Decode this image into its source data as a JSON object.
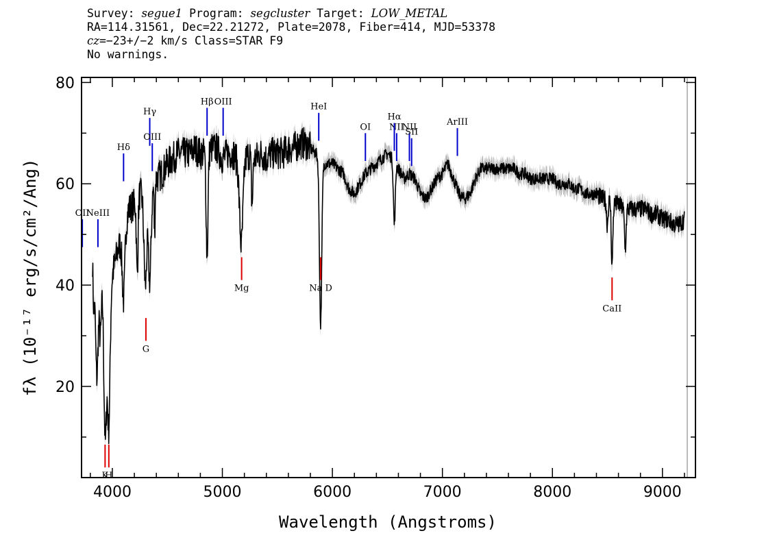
{
  "header": {
    "line1": {
      "survey_label": "Survey: ",
      "survey": "segue1",
      "program_label": " Program: ",
      "program": "segcluster",
      "target_label": " Target: ",
      "target": "LOW_METAL"
    },
    "line2": "RA=114.31561, Dec=22.21272, Plate=2078, Fiber=414, MJD=53378",
    "line3": {
      "cz_label": "cz",
      "cz_value": "=−23+/−2",
      "rest": " km/s Class=STAR F9"
    },
    "line4": "No warnings."
  },
  "chart_data": {
    "type": "line",
    "xlabel": "Wavelength (Angstroms)",
    "ylabel": "fλ (10⁻¹⁷ erg/s/cm²/Ang)",
    "xlim": [
      3720,
      9300
    ],
    "ylim": [
      2,
      81
    ],
    "x_ticks": [
      4000,
      5000,
      6000,
      7000,
      8000,
      9000
    ],
    "y_ticks": [
      20,
      40,
      60,
      80
    ],
    "series_color": "#000000",
    "error_color": "#bbbbbb",
    "emission_line_color": "#0000cc",
    "absorption_line_color": "#dd0000",
    "continuum": [
      [
        3820,
        48
      ],
      [
        3850,
        38
      ],
      [
        3880,
        42
      ],
      [
        3910,
        40
      ],
      [
        3940,
        30
      ],
      [
        3970,
        37
      ],
      [
        4000,
        42
      ],
      [
        4050,
        47
      ],
      [
        4100,
        50
      ],
      [
        4150,
        55
      ],
      [
        4200,
        56
      ],
      [
        4250,
        58
      ],
      [
        4300,
        58
      ],
      [
        4350,
        59
      ],
      [
        4400,
        61
      ],
      [
        4450,
        62
      ],
      [
        4500,
        64
      ],
      [
        4550,
        65
      ],
      [
        4600,
        66
      ],
      [
        4650,
        66
      ],
      [
        4700,
        66
      ],
      [
        4750,
        67
      ],
      [
        4800,
        66
      ],
      [
        4850,
        66
      ],
      [
        4900,
        67
      ],
      [
        4950,
        67
      ],
      [
        5000,
        65
      ],
      [
        5050,
        66
      ],
      [
        5100,
        66
      ],
      [
        5150,
        64
      ],
      [
        5200,
        65
      ],
      [
        5250,
        66
      ],
      [
        5300,
        65
      ],
      [
        5350,
        66
      ],
      [
        5400,
        65
      ],
      [
        5450,
        66
      ],
      [
        5500,
        66
      ],
      [
        5550,
        66
      ],
      [
        5600,
        67
      ],
      [
        5650,
        67
      ],
      [
        5700,
        68
      ],
      [
        5750,
        68
      ],
      [
        5800,
        67
      ],
      [
        5850,
        66
      ],
      [
        5900,
        64
      ],
      [
        5950,
        64
      ],
      [
        6000,
        64
      ],
      [
        6050,
        63
      ],
      [
        6100,
        62
      ],
      [
        6150,
        59
      ],
      [
        6200,
        58
      ],
      [
        6250,
        60
      ],
      [
        6300,
        62
      ],
      [
        6350,
        63
      ],
      [
        6400,
        64
      ],
      [
        6450,
        65
      ],
      [
        6500,
        66
      ],
      [
        6550,
        65
      ],
      [
        6600,
        63
      ],
      [
        6650,
        61
      ],
      [
        6700,
        62
      ],
      [
        6750,
        61
      ],
      [
        6800,
        58
      ],
      [
        6850,
        57
      ],
      [
        6900,
        59
      ],
      [
        6950,
        61
      ],
      [
        7000,
        62
      ],
      [
        7050,
        64
      ],
      [
        7100,
        61
      ],
      [
        7150,
        58
      ],
      [
        7200,
        57
      ],
      [
        7250,
        58
      ],
      [
        7300,
        61
      ],
      [
        7350,
        63
      ],
      [
        7400,
        63
      ],
      [
        7450,
        63
      ],
      [
        7500,
        63
      ],
      [
        7550,
        63
      ],
      [
        7600,
        63
      ],
      [
        7650,
        63
      ],
      [
        7700,
        62
      ],
      [
        7750,
        62
      ],
      [
        7800,
        61
      ],
      [
        7850,
        61
      ],
      [
        7900,
        61
      ],
      [
        7950,
        61
      ],
      [
        8000,
        61
      ],
      [
        8050,
        60
      ],
      [
        8100,
        60
      ],
      [
        8150,
        60
      ],
      [
        8200,
        59
      ],
      [
        8250,
        59
      ],
      [
        8300,
        58
      ],
      [
        8350,
        58
      ],
      [
        8400,
        58
      ],
      [
        8450,
        57
      ],
      [
        8500,
        57
      ],
      [
        8550,
        56
      ],
      [
        8600,
        56
      ],
      [
        8650,
        55
      ],
      [
        8700,
        55
      ],
      [
        8750,
        55
      ],
      [
        8800,
        55
      ],
      [
        8850,
        55
      ],
      [
        8900,
        54
      ],
      [
        8950,
        54
      ],
      [
        9000,
        53
      ],
      [
        9050,
        53
      ],
      [
        9100,
        52
      ],
      [
        9150,
        52
      ],
      [
        9200,
        53
      ]
    ],
    "features": [
      [
        3830,
        36,
        10
      ],
      [
        3860,
        22,
        15
      ],
      [
        3890,
        30,
        14
      ],
      [
        3934,
        10,
        16
      ],
      [
        3968,
        12,
        16
      ],
      [
        4102,
        37,
        16
      ],
      [
        4226,
        42,
        10
      ],
      [
        4300,
        40,
        18
      ],
      [
        4340,
        41,
        18
      ],
      [
        4384,
        50,
        6
      ],
      [
        4861,
        46,
        12
      ],
      [
        5172,
        48,
        22
      ],
      [
        5270,
        56,
        10
      ],
      [
        5890,
        47,
        14
      ],
      [
        5896,
        48,
        14
      ],
      [
        6563,
        52,
        12
      ],
      [
        8498,
        52,
        10
      ],
      [
        8542,
        44,
        10
      ],
      [
        8662,
        47,
        10
      ]
    ],
    "emission_lines": [
      {
        "label": "OII",
        "x": 3727,
        "y": 53
      },
      {
        "label": "NeIII",
        "x": 3869,
        "y": 53
      },
      {
        "label": "Hδ",
        "x": 4102,
        "y": 66
      },
      {
        "label": "Hγ",
        "x": 4340,
        "y": 73
      },
      {
        "label": "OIII",
        "x": 4363,
        "y": 68
      },
      {
        "label": "Hβ",
        "x": 4861,
        "y": 75
      },
      {
        "label": "OIII",
        "x": 5007,
        "y": 75
      },
      {
        "label": "HeI",
        "x": 5876,
        "y": 74
      },
      {
        "label": "OI",
        "x": 6300,
        "y": 70
      },
      {
        "label": "NII",
        "x": 6584,
        "y": 70
      },
      {
        "label": "Hα",
        "x": 6563,
        "y": 72
      },
      {
        "label": "NII",
        "x": 6700,
        "y": 70
      },
      {
        "label": "SII",
        "x": 6720,
        "y": 69
      },
      {
        "label": "ArIII",
        "x": 7136,
        "y": 71
      }
    ],
    "absorption_lines": [
      {
        "label": "K",
        "x": 3934,
        "y": 4
      },
      {
        "label": "H",
        "x": 3968,
        "y": 4
      },
      {
        "label": "G",
        "x": 4305,
        "y": 29
      },
      {
        "label": "Mg",
        "x": 5175,
        "y": 41
      },
      {
        "label": "Na D",
        "x": 5894,
        "y": 41
      },
      {
        "label": "CaII",
        "x": 8542,
        "y": 37
      }
    ]
  }
}
